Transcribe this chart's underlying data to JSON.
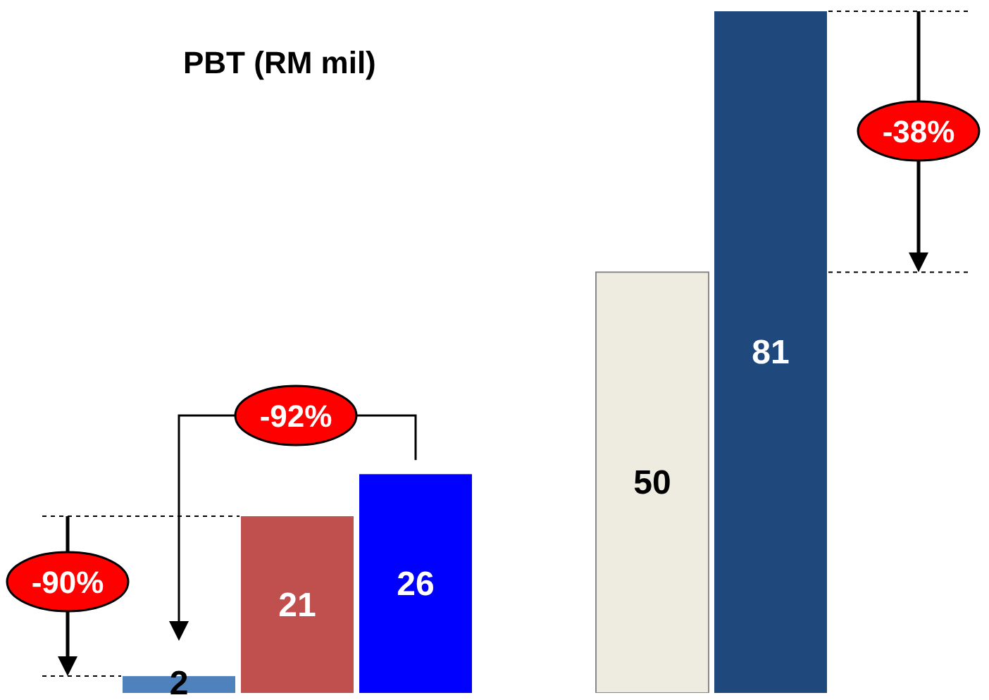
{
  "chart_data": {
    "type": "bar",
    "title": "PBT (RM mil)",
    "categories": [
      null,
      null,
      null,
      null,
      null
    ],
    "values": [
      2,
      21,
      26,
      50,
      81
    ],
    "colors": [
      "#4f81bd",
      "#c0504d",
      "#0000ff",
      "#eeece1",
      "#1f497d"
    ],
    "data_labels": true,
    "annotations": [
      "-90%",
      "-92%",
      "-38%"
    ]
  }
}
